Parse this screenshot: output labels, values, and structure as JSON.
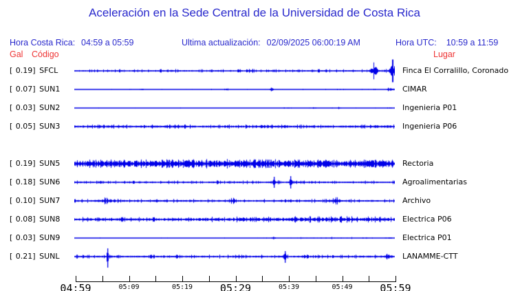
{
  "title": "Aceleración en la Sede Central de la Universidad de Costa Rica",
  "header": {
    "hora_cr_label": "Hora Costa Rica:",
    "hora_cr_value": "04:59 a 05:59",
    "actualizacion_label": "Ultima actualización:",
    "actualizacion_value": "02/09/2025 06:00:19 AM",
    "hora_utc_label": "Hora UTC:",
    "hora_utc_value": "10:59 a 11:59",
    "col_gal": "Gal",
    "col_codigo": "Código",
    "col_lugar": "Lugar"
  },
  "format": {
    "bracket_open": "[",
    "bracket_close": "] "
  },
  "colors": {
    "background": "#ffffff",
    "title_blue": "#2828cc",
    "label_red": "#ee3333",
    "trace_blue": "#0000e8",
    "text_black": "#000000"
  },
  "chart_data": {
    "type": "line",
    "title": "Aceleración en la Sede Central de la Universidad de Costa Rica",
    "x_axis": {
      "range": [
        "04:59",
        "05:59"
      ],
      "tick_interval_minutes": 5,
      "tick_count": 13,
      "labels": [
        {
          "label": "04:59",
          "tick": 0,
          "size": "large"
        },
        {
          "label": "05:09",
          "tick": 2,
          "size": "small"
        },
        {
          "label": "05:19",
          "tick": 4,
          "size": "small"
        },
        {
          "label": "05:29",
          "tick": 6,
          "size": "large"
        },
        {
          "label": "05:39",
          "tick": 8,
          "size": "small"
        },
        {
          "label": "05:49",
          "tick": 10,
          "size": "small"
        },
        {
          "label": "05:59",
          "tick": 12,
          "size": "large"
        }
      ]
    },
    "y_units": "Gal",
    "stations": [
      {
        "gal": "0.19",
        "code": "SFCL",
        "lugar": "Finca El Corralillo, Coronado",
        "row": 0,
        "trace": {
          "seed": 11,
          "base": 0.8,
          "blips": 0.22,
          "blip_amp": 1.8,
          "right_bias": false,
          "bursts": [
            {
              "pos": 0.3,
              "w": 0.02,
              "amp": 0.6
            },
            {
              "pos": 0.55,
              "w": 0.015,
              "amp": 0.5
            },
            {
              "pos": 0.935,
              "w": 0.011,
              "amp": 5.2
            },
            {
              "pos": 0.993,
              "w": 0.011,
              "amp": 6.0
            }
          ],
          "spikes": []
        }
      },
      {
        "gal": "0.07",
        "code": "SUN1",
        "lugar": "CIMAR",
        "row": 1,
        "trace": {
          "seed": 22,
          "base": 0.32,
          "blips": 0.07,
          "blip_amp": 2.0,
          "right_bias": true,
          "bursts": [
            {
              "pos": 0.21,
              "w": 0.006,
              "amp": 0.8
            },
            {
              "pos": 0.47,
              "w": 0.008,
              "amp": 1.0
            },
            {
              "pos": 0.615,
              "w": 0.005,
              "amp": 2.6
            },
            {
              "pos": 0.985,
              "w": 0.009,
              "amp": 1.7
            }
          ],
          "spikes": []
        }
      },
      {
        "gal": "0.03",
        "code": "SUN2",
        "lugar": "Ingenieria P01",
        "row": 2,
        "trace": {
          "seed": 33,
          "base": 0.28,
          "blips": 0.05,
          "blip_amp": 1.5,
          "right_bias": true,
          "bursts": [
            {
              "pos": 0.66,
              "w": 0.01,
              "amp": 0.7
            },
            {
              "pos": 0.745,
              "w": 0.01,
              "amp": 0.7
            },
            {
              "pos": 0.825,
              "w": 0.008,
              "amp": 0.6
            },
            {
              "pos": 0.98,
              "w": 0.005,
              "amp": 0.9
            }
          ],
          "spikes": []
        }
      },
      {
        "gal": "0.05",
        "code": "SUN3",
        "lugar": "Ingenieria P06",
        "row": 3,
        "trace": {
          "seed": 44,
          "base": 1.3,
          "blips": 0.18,
          "blip_amp": 1.2,
          "right_bias": false,
          "bursts": [
            {
              "pos": 0.585,
              "w": 0.008,
              "amp": 0.9
            },
            {
              "pos": 0.975,
              "w": 0.01,
              "amp": 0.6
            }
          ],
          "spikes": []
        }
      },
      {
        "gal": "0.19",
        "code": "SUN5",
        "lugar": "Rectoria",
        "row": 5,
        "trace": {
          "seed": 55,
          "base": 3.3,
          "blips": 0.22,
          "blip_amp": 0.7,
          "right_bias": false,
          "bursts": [
            {
              "pos": 0.5,
              "w": 0.3,
              "amp": 0.5
            }
          ],
          "spikes": []
        }
      },
      {
        "gal": "0.18",
        "code": "SUN6",
        "lugar": "Agroalimentarias",
        "row": 6,
        "trace": {
          "seed": 66,
          "base": 0.95,
          "blips": 0.2,
          "blip_amp": 1.6,
          "right_bias": false,
          "bursts": [
            {
              "pos": 0.62,
              "w": 0.02,
              "amp": 0.6
            },
            {
              "pos": 0.674,
              "w": 0.004,
              "amp": 3.2
            }
          ],
          "spikes": [
            {
              "pos": 0.622,
              "up": 8,
              "down": 8
            },
            {
              "pos": 0.674,
              "up": 9,
              "down": 9
            }
          ]
        }
      },
      {
        "gal": "0.10",
        "code": "SUN7",
        "lugar": "Archivo",
        "row": 7,
        "trace": {
          "seed": 77,
          "base": 1.05,
          "blips": 0.17,
          "blip_amp": 1.5,
          "right_bias": false,
          "bursts": [
            {
              "pos": 0.1,
              "w": 0.03,
              "amp": 1.1
            },
            {
              "pos": 0.494,
              "w": 0.005,
              "amp": 3.0
            },
            {
              "pos": 0.82,
              "w": 0.012,
              "amp": 1.5
            }
          ],
          "spikes": []
        }
      },
      {
        "gal": "0.08",
        "code": "SUN8",
        "lugar": "Electrica P06",
        "row": 8,
        "trace": {
          "seed": 88,
          "base": 1.5,
          "blips": 0.17,
          "blip_amp": 1.2,
          "right_bias": false,
          "bursts": [
            {
              "pos": 0.74,
              "w": 0.28,
              "amp": 0.7
            }
          ],
          "spikes": [
            {
              "pos": 0.952,
              "up": 4,
              "down": 4
            }
          ]
        }
      },
      {
        "gal": "0.03",
        "code": "SUN9",
        "lugar": "Electrica P01",
        "row": 9,
        "trace": {
          "seed": 99,
          "base": 0.3,
          "blips": 0.05,
          "blip_amp": 1.4,
          "right_bias": true,
          "bursts": [
            {
              "pos": 0.62,
              "w": 0.004,
              "amp": 1.6
            },
            {
              "pos": 0.8,
              "w": 0.16,
              "amp": 0.35
            },
            {
              "pos": 0.98,
              "w": 0.01,
              "amp": 0.7
            }
          ],
          "spikes": []
        }
      },
      {
        "gal": "0.21",
        "code": "SUNL",
        "lugar": "LANAMME-CTT",
        "row": 10,
        "trace": {
          "seed": 110,
          "base": 1.1,
          "blips": 0.18,
          "blip_amp": 1.5,
          "right_bias": false,
          "bursts": [
            {
              "pos": 0.104,
              "w": 0.004,
              "amp": 2.2
            },
            {
              "pos": 0.657,
              "w": 0.005,
              "amp": 2.8
            },
            {
              "pos": 0.975,
              "w": 0.006,
              "amp": 1.8
            }
          ],
          "spikes": [
            {
              "pos": 0.104,
              "up": 12,
              "down": 16
            },
            {
              "pos": 0.657,
              "up": 8,
              "down": 9
            },
            {
              "pos": 0.975,
              "up": 4,
              "down": 4
            }
          ]
        }
      }
    ]
  }
}
